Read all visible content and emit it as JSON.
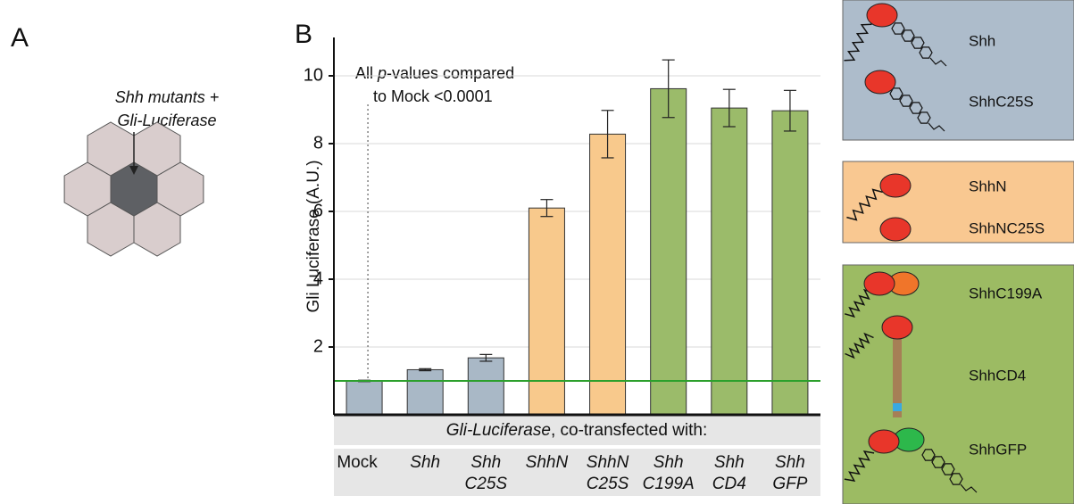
{
  "panel_a": {
    "label": "A",
    "lines": [
      "Shh mutants +",
      "Gli-Luciferase"
    ]
  },
  "panel_b": {
    "label": "B"
  },
  "chart_data": {
    "type": "bar",
    "y_label": "Gli Luciferase (A.U.)",
    "x_label": [
      "Gli-Luciferase",
      ", co-transfected with:"
    ],
    "annotation": [
      "All",
      "p",
      "-values compared",
      "to Mock <0.0001"
    ],
    "categories": [
      "Mock",
      "Shh",
      "Shh\nC25S",
      "ShhN",
      "ShhN\nC25S",
      "Shh\nC199A",
      "Shh\nCD4",
      "Shh\nGFP"
    ],
    "category_italic": [
      false,
      true,
      true,
      true,
      true,
      true,
      true,
      true
    ],
    "values": [
      1.0,
      1.33,
      1.68,
      6.1,
      8.28,
      9.62,
      9.05,
      8.97
    ],
    "errors": [
      0.02,
      0.03,
      0.1,
      0.25,
      0.7,
      0.85,
      0.55,
      0.6
    ],
    "colors": [
      "#a9b8c6",
      "#a9b8c6",
      "#a9b8c6",
      "#f8c98c",
      "#f8c98c",
      "#9bbb6a",
      "#9bbb6a",
      "#9bbb6a"
    ],
    "reference_line": 1.0,
    "reference_color": "#2ca02c",
    "ylim": [
      0,
      11
    ],
    "yticks": [
      2,
      4,
      6,
      8,
      10
    ],
    "grid": true
  },
  "legend_panels": [
    [
      "Shh",
      "ShhC25S"
    ],
    [
      "ShhN",
      "ShhNC25S"
    ],
    [
      "ShhC199A",
      "ShhCD4",
      "ShhGFP"
    ]
  ]
}
